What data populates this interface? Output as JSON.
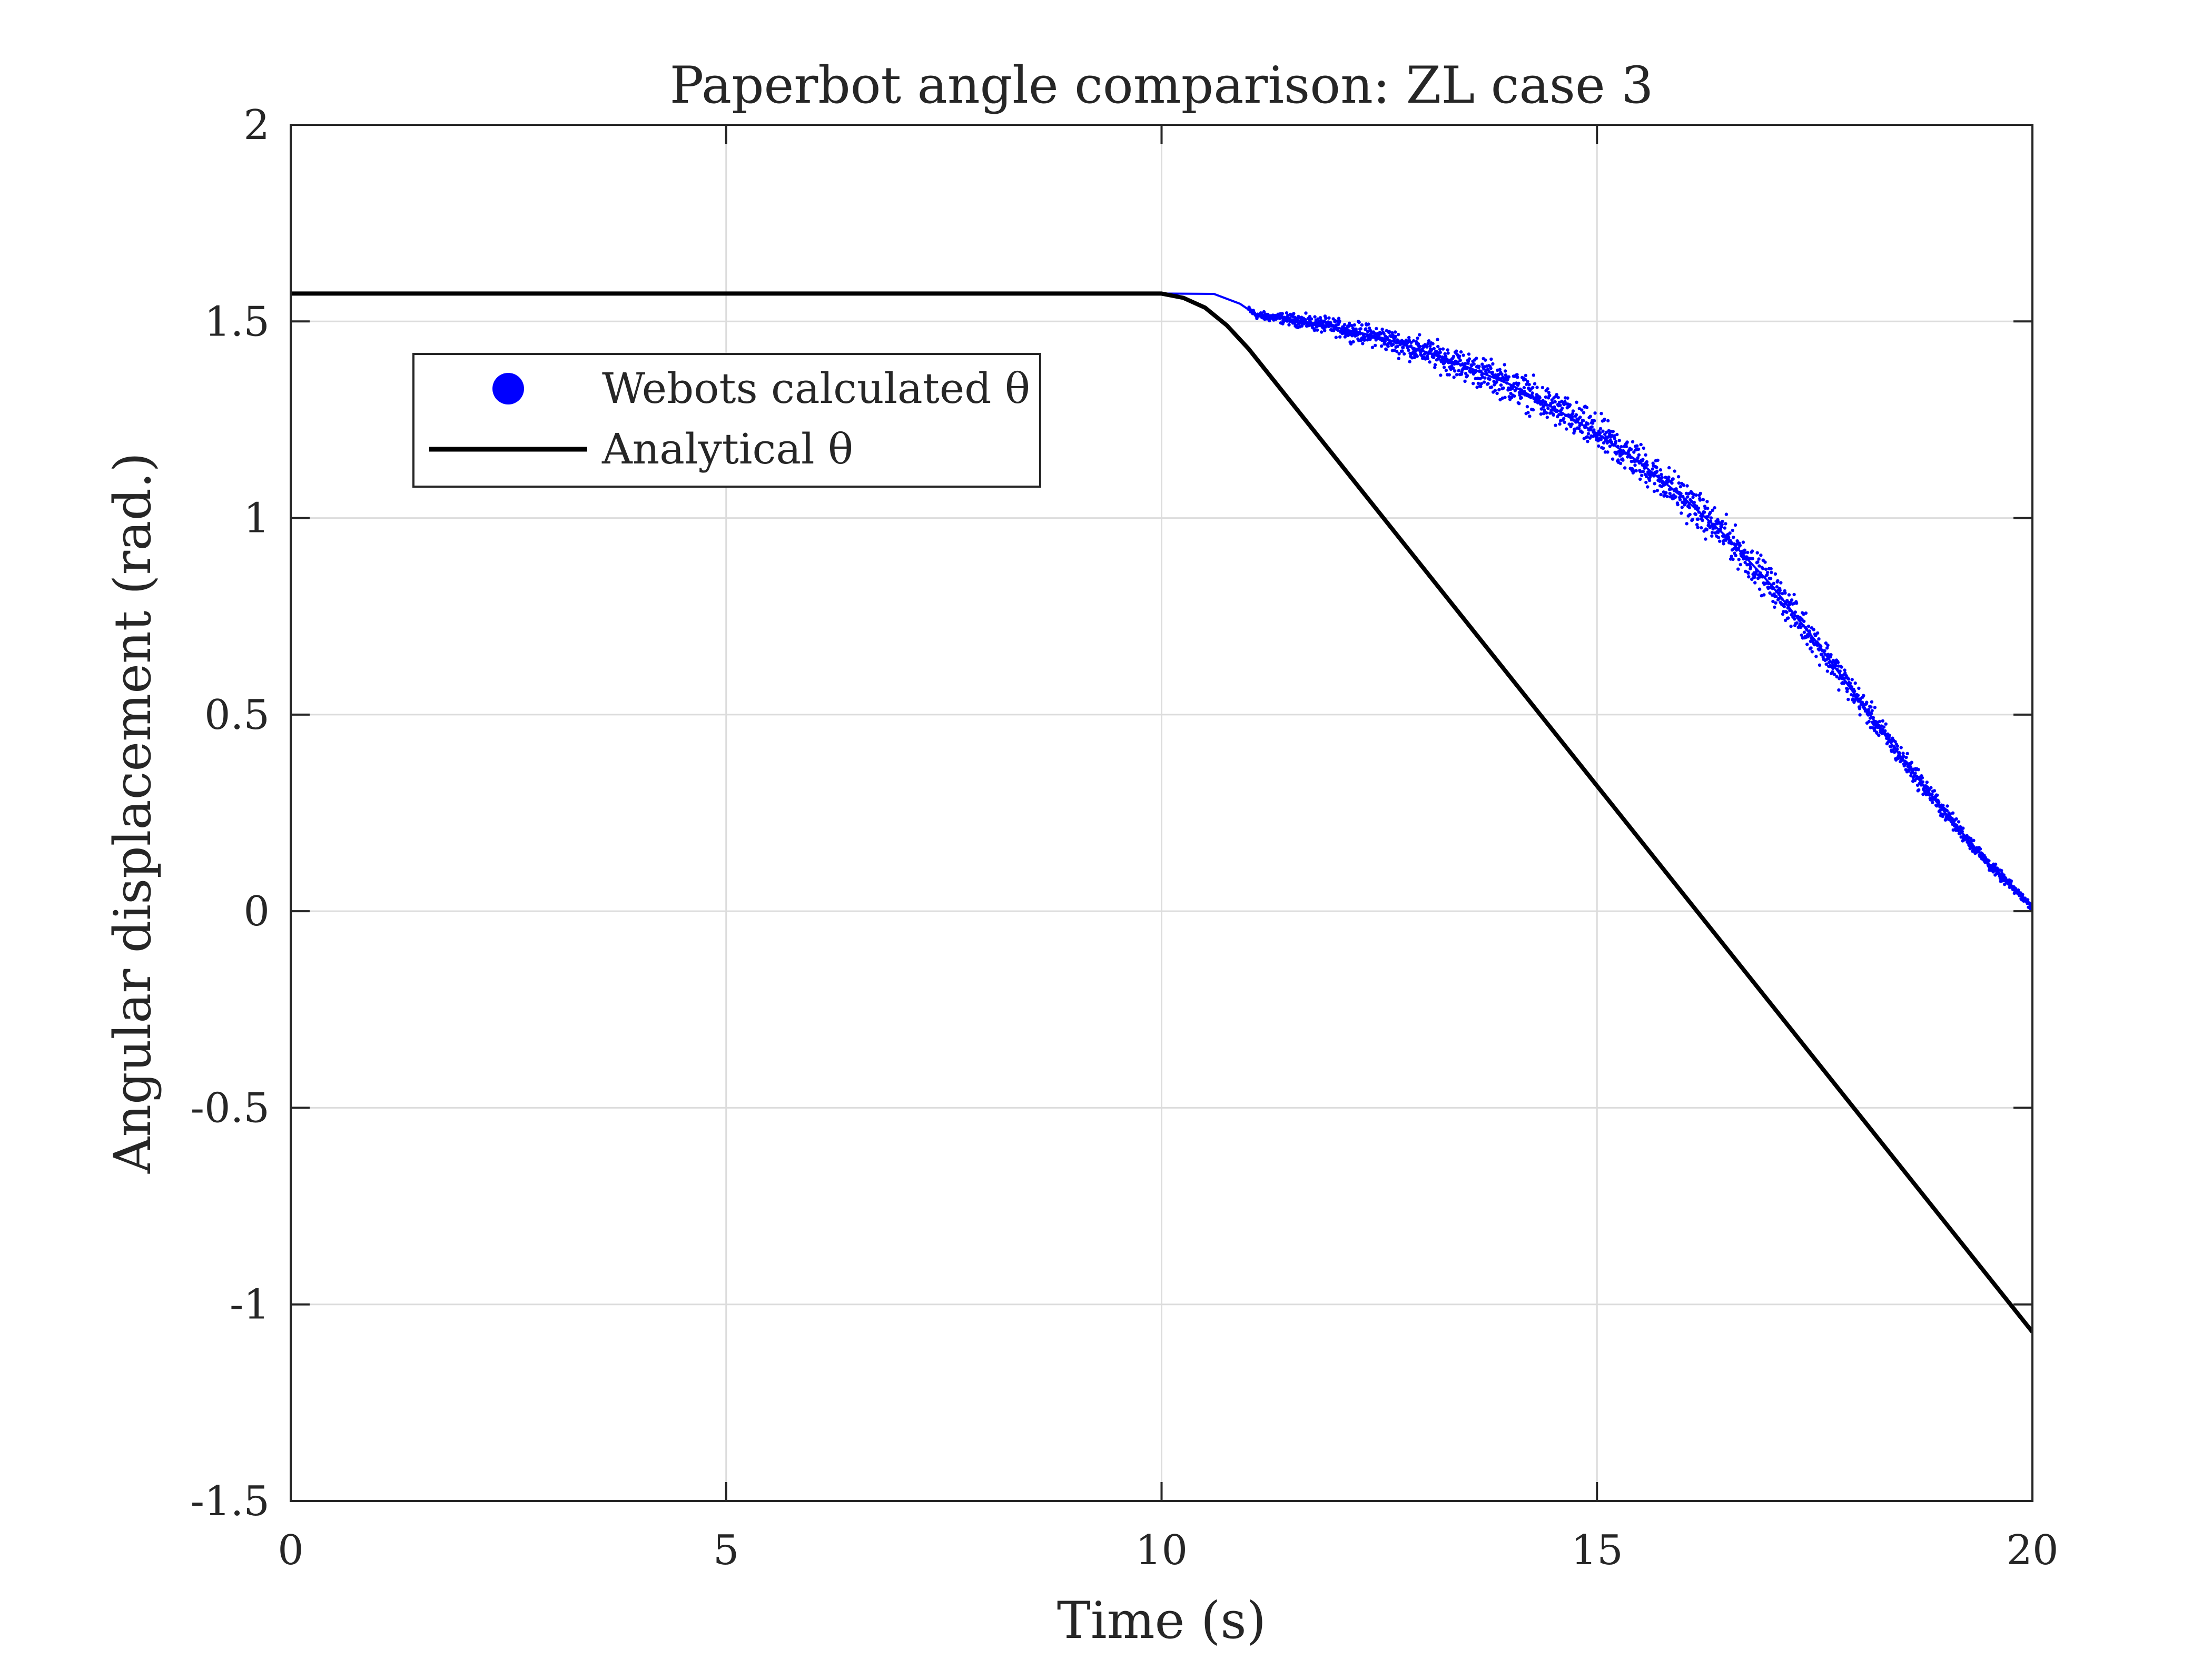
{
  "chart_data": {
    "type": "scatter",
    "title": "Paperbot angle comparison: ZL case 3",
    "xlabel": "Time (s)",
    "ylabel": "Angular displacement (rad.)",
    "xlim": [
      0,
      20
    ],
    "ylim": [
      -1.5,
      2
    ],
    "xticks": [
      0,
      5,
      10,
      15,
      20
    ],
    "yticks": [
      -1.5,
      -1,
      -0.5,
      0,
      0.5,
      1,
      1.5,
      2
    ],
    "xtick_labels": [
      "0",
      "5",
      "10",
      "15",
      "20"
    ],
    "ytick_labels": [
      "-1.5",
      "-1",
      "-0.5",
      "0",
      "0.5",
      "1",
      "1.5",
      "2"
    ],
    "grid": true,
    "legend_position": "upper-left",
    "series": [
      {
        "name": "Webots calculated θ",
        "kind": "scatter",
        "color": "#0000ff",
        "x": [
          0,
          10,
          10.6,
          10.9,
          11.1,
          11.5,
          12,
          12.5,
          13,
          13.5,
          14,
          14.5,
          15,
          15.5,
          16,
          16.5,
          17,
          17.5,
          18,
          18.5,
          19,
          19.5,
          20
        ],
        "y": [
          1.5708,
          1.5708,
          1.57,
          1.545,
          1.515,
          1.505,
          1.485,
          1.46,
          1.425,
          1.385,
          1.34,
          1.28,
          1.215,
          1.14,
          1.05,
          0.95,
          0.83,
          0.69,
          0.54,
          0.39,
          0.25,
          0.12,
          0.01
        ]
      },
      {
        "name": "Analytical θ",
        "kind": "line",
        "color": "#000000",
        "x": [
          0,
          10,
          10.25,
          10.5,
          10.75,
          11,
          20
        ],
        "y": [
          1.5708,
          1.5708,
          1.56,
          1.535,
          1.49,
          1.43,
          -1.07
        ]
      }
    ]
  }
}
